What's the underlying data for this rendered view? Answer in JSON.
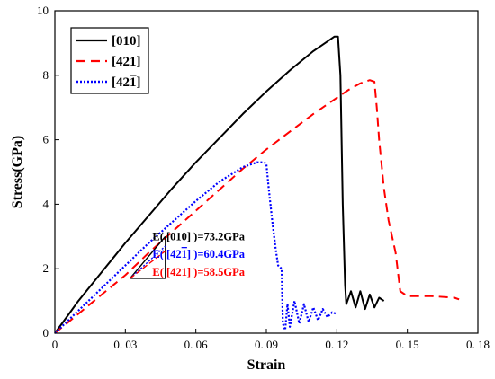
{
  "chart_data": {
    "type": "line",
    "xlabel": "Strain",
    "ylabel": "Stress(GPa)",
    "xlim": [
      0,
      0.18
    ],
    "ylim": [
      0,
      10
    ],
    "x_ticks": [
      0,
      0.03,
      0.06,
      0.09,
      0.12,
      0.15,
      0.18
    ],
    "x_tick_labels": [
      "0",
      "0. 03",
      "0. 06",
      "0. 09",
      "0. 12",
      "0. 15",
      "0. 18"
    ],
    "y_ticks": [
      0,
      2,
      4,
      6,
      8,
      10
    ],
    "y_tick_labels": [
      "0",
      "2",
      "4",
      "6",
      "8",
      "10"
    ],
    "grid": false,
    "legend_position": "top-left",
    "series": [
      {
        "name": "[010]",
        "name_main": "[010]",
        "name_overbar": "",
        "name_end": "",
        "color": "#000000",
        "style": "solid",
        "x": [
          0,
          0.005,
          0.01,
          0.02,
          0.03,
          0.04,
          0.05,
          0.06,
          0.07,
          0.08,
          0.09,
          0.1,
          0.11,
          0.115,
          0.119,
          0.1205,
          0.1215,
          0.1225,
          0.1235,
          0.124,
          0.126,
          0.128,
          0.13,
          0.132,
          0.134,
          0.136,
          0.138,
          0.14
        ],
        "y": [
          0,
          0.5,
          1.0,
          1.9,
          2.8,
          3.65,
          4.5,
          5.3,
          6.05,
          6.8,
          7.5,
          8.15,
          8.75,
          9.0,
          9.2,
          9.2,
          8.0,
          4.0,
          1.5,
          0.9,
          1.3,
          0.8,
          1.3,
          0.75,
          1.2,
          0.8,
          1.1,
          1.0
        ]
      },
      {
        "name": "[421]",
        "name_main": "[421]",
        "name_overbar": "",
        "name_end": "",
        "color": "#ff0000",
        "style": "dashed",
        "x": [
          0,
          0.01,
          0.02,
          0.03,
          0.04,
          0.05,
          0.06,
          0.07,
          0.08,
          0.09,
          0.1,
          0.11,
          0.12,
          0.125,
          0.13,
          0.134,
          0.136,
          0.137,
          0.138,
          0.14,
          0.142,
          0.145,
          0.147,
          0.15,
          0.16,
          0.17,
          0.172
        ],
        "y": [
          0,
          0.6,
          1.2,
          1.8,
          2.5,
          3.15,
          3.8,
          4.45,
          5.1,
          5.7,
          6.25,
          6.8,
          7.3,
          7.55,
          7.75,
          7.85,
          7.8,
          7.0,
          6.0,
          4.5,
          3.5,
          2.5,
          1.3,
          1.15,
          1.15,
          1.1,
          1.05
        ]
      },
      {
        "name": "[421̄]",
        "name_main": "[42",
        "name_overbar": "1",
        "name_end": "]",
        "color": "#0000ff",
        "style": "dotted",
        "x": [
          0,
          0.01,
          0.02,
          0.03,
          0.04,
          0.05,
          0.06,
          0.07,
          0.08,
          0.086,
          0.089,
          0.09,
          0.091,
          0.0925,
          0.094,
          0.095,
          0.0965,
          0.097,
          0.098,
          0.099,
          0.1,
          0.102,
          0.104,
          0.106,
          0.108,
          0.11,
          0.112,
          0.114,
          0.116,
          0.118,
          0.12
        ],
        "y": [
          0,
          0.7,
          1.4,
          2.1,
          2.8,
          3.45,
          4.1,
          4.7,
          5.15,
          5.3,
          5.3,
          5.25,
          4.5,
          3.5,
          2.6,
          2.1,
          2.0,
          0.3,
          0.1,
          0.9,
          0.2,
          1.0,
          0.3,
          0.9,
          0.35,
          0.8,
          0.4,
          0.75,
          0.5,
          0.65,
          0.6
        ]
      }
    ],
    "annotations": [
      {
        "main": "E( [010] )=73.2GPa",
        "overbar": "",
        "end": "",
        "color": "#000000"
      },
      {
        "main": "E( [42",
        "overbar": "1",
        "end": "] )=60.4GPa",
        "color": "#0000ff"
      },
      {
        "main": "E( [421] )=58.5GPa",
        "overbar": "",
        "end": "",
        "color": "#ff0000"
      }
    ]
  }
}
